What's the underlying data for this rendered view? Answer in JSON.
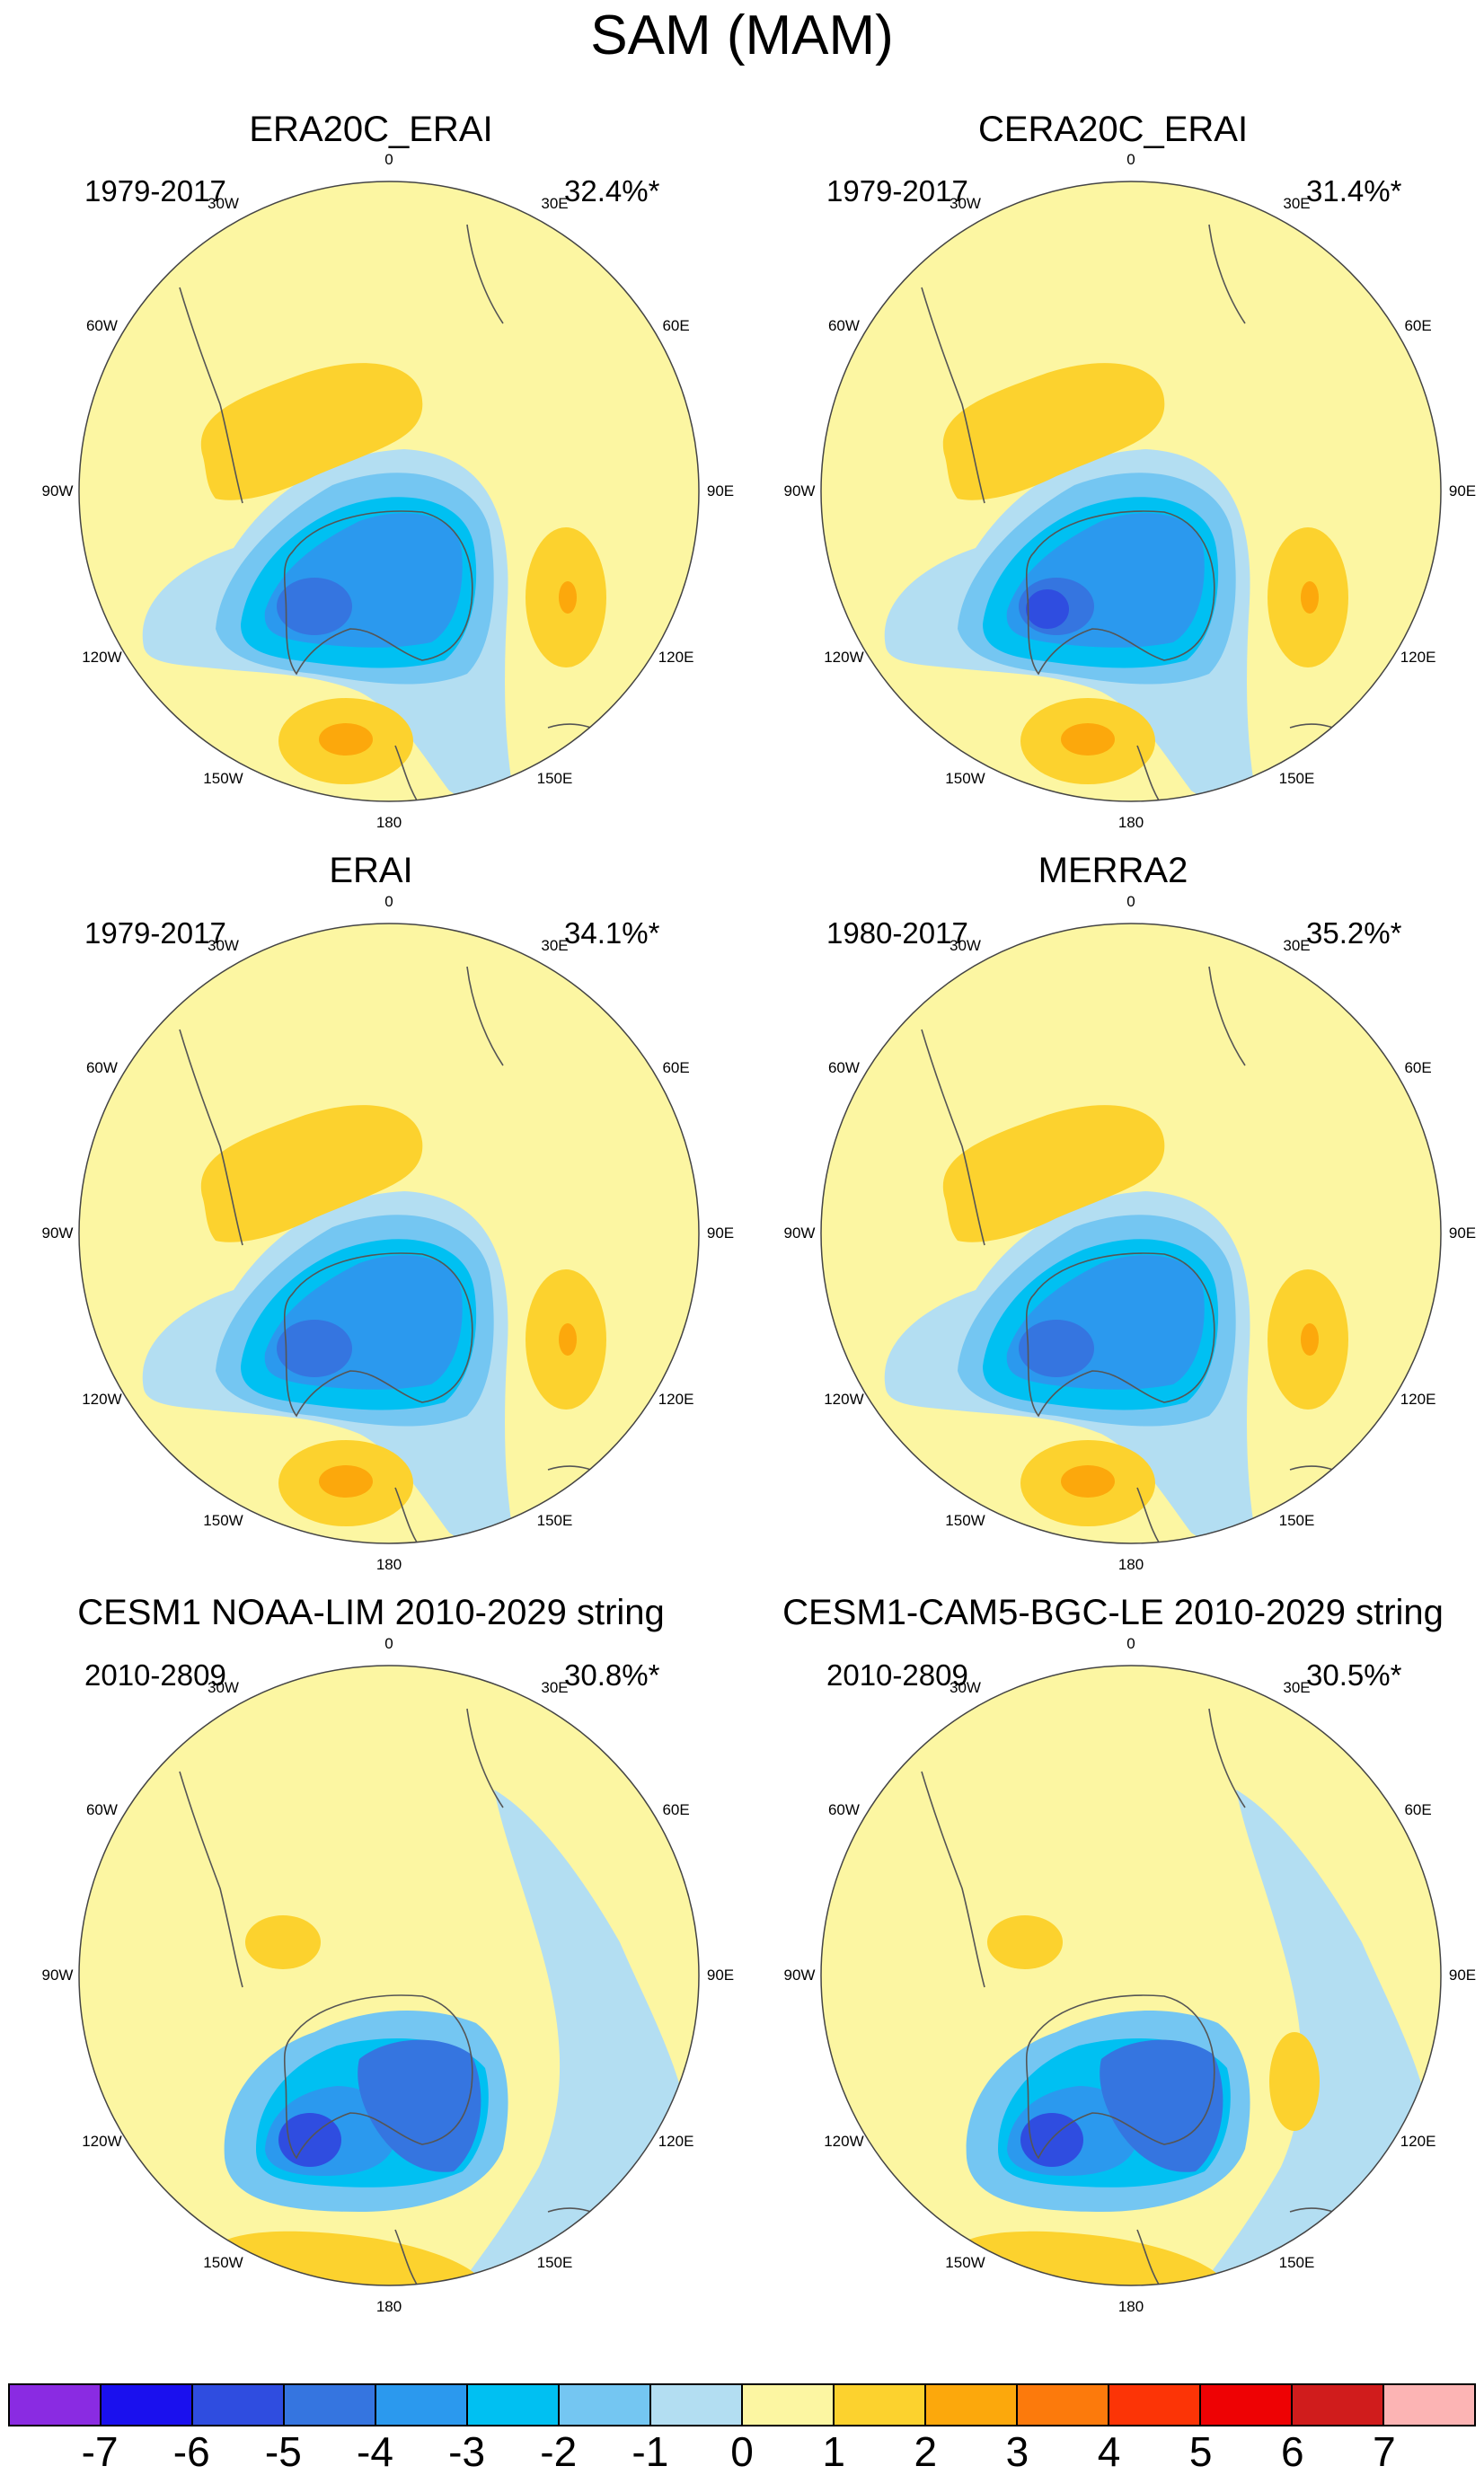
{
  "title": "SAM (MAM)",
  "longitude_labels": [
    "0",
    "30E",
    "60E",
    "90E",
    "120E",
    "150E",
    "180",
    "150W",
    "120W",
    "90W",
    "60W",
    "30W"
  ],
  "panels": [
    {
      "title": "ERA20C_ERAI",
      "years": "1979-2017",
      "variance": "32.4%*",
      "variant": "reanalysis"
    },
    {
      "title": "CERA20C_ERAI",
      "years": "1979-2017",
      "variance": "31.4%*",
      "variant": "cera"
    },
    {
      "title": "ERAI",
      "years": "1979-2017",
      "variance": "34.1%*",
      "variant": "reanalysis"
    },
    {
      "title": "MERRA2",
      "years": "1980-2017",
      "variance": "35.2%*",
      "variant": "merra"
    },
    {
      "title": "CESM1 NOAA-LIM 2010-2029 string",
      "years": "2010-2809",
      "variance": "30.8%*",
      "variant": "model"
    },
    {
      "title": "CESM1-CAM5-BGC-LE 2010-2029 string",
      "years": "2010-2809",
      "variance": "30.5%*",
      "variant": "model2"
    }
  ],
  "colorbar": {
    "levels": [
      "-7",
      "-6",
      "-5",
      "-4",
      "-3",
      "-2",
      "-1",
      "0",
      "1",
      "2",
      "3",
      "4",
      "5",
      "6",
      "7"
    ],
    "colors": [
      "#8a2be2",
      "#1a10ee",
      "#2f4de0",
      "#3575e0",
      "#2b99ee",
      "#00c0f2",
      "#74c6f2",
      "#b3def2",
      "#fcf6a2",
      "#fcd22e",
      "#fca80c",
      "#fc7a0c",
      "#fc3406",
      "#ee0204",
      "#d01c1c",
      "#fcb4b4"
    ]
  }
}
